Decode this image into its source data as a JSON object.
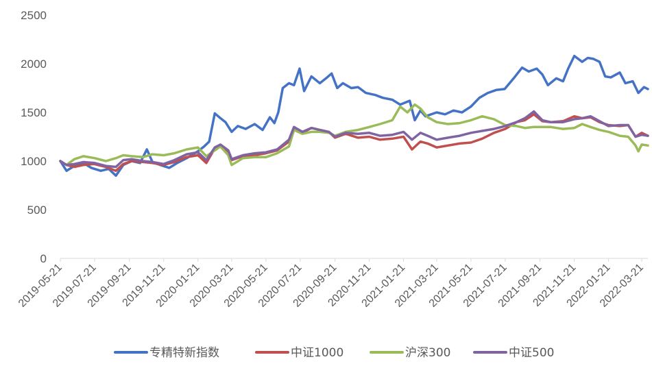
{
  "chart_data": {
    "type": "line",
    "title": "",
    "xlabel": "",
    "ylabel": "",
    "ylim": [
      0,
      2500
    ],
    "yticks": [
      0,
      500,
      1000,
      1500,
      2000,
      2500
    ],
    "x_tick_labels": [
      "2019-05-21",
      "2019-07-21",
      "2019-09-21",
      "2019-11-21",
      "2020-01-21",
      "2020-03-21",
      "2020-05-21",
      "2020-07-21",
      "2020-09-21",
      "2020-11-21",
      "2021-01-21",
      "2021-03-21",
      "2021-05-21",
      "2021-07-21",
      "2021-09-21",
      "2021-11-21",
      "2022-01-21",
      "2022-03-21"
    ],
    "x_start": "2019-05-21",
    "x_end": "2022-04-01",
    "grid": false,
    "legend_position": "bottom",
    "series": [
      {
        "name": "专精特新指数",
        "color": "#4472C4",
        "points": [
          [
            "2019-05-21",
            1000
          ],
          [
            "2019-06-01",
            900
          ],
          [
            "2019-06-15",
            950
          ],
          [
            "2019-07-01",
            980
          ],
          [
            "2019-07-15",
            930
          ],
          [
            "2019-08-01",
            900
          ],
          [
            "2019-08-15",
            920
          ],
          [
            "2019-08-28",
            850
          ],
          [
            "2019-09-10",
            960
          ],
          [
            "2019-09-25",
            1000
          ],
          [
            "2019-10-10",
            980
          ],
          [
            "2019-10-22",
            1120
          ],
          [
            "2019-11-01",
            990
          ],
          [
            "2019-11-15",
            960
          ],
          [
            "2019-12-01",
            930
          ],
          [
            "2019-12-15",
            980
          ],
          [
            "2020-01-01",
            1030
          ],
          [
            "2020-01-21",
            1100
          ],
          [
            "2020-02-01",
            1150
          ],
          [
            "2020-02-10",
            1200
          ],
          [
            "2020-02-20",
            1490
          ],
          [
            "2020-02-28",
            1450
          ],
          [
            "2020-03-10",
            1400
          ],
          [
            "2020-03-21",
            1300
          ],
          [
            "2020-04-01",
            1360
          ],
          [
            "2020-04-15",
            1330
          ],
          [
            "2020-05-01",
            1380
          ],
          [
            "2020-05-15",
            1320
          ],
          [
            "2020-05-28",
            1450
          ],
          [
            "2020-06-05",
            1390
          ],
          [
            "2020-06-12",
            1500
          ],
          [
            "2020-06-20",
            1750
          ],
          [
            "2020-07-01",
            1800
          ],
          [
            "2020-07-10",
            1780
          ],
          [
            "2020-07-20",
            1950
          ],
          [
            "2020-07-28",
            1720
          ],
          [
            "2020-08-10",
            1870
          ],
          [
            "2020-08-25",
            1800
          ],
          [
            "2020-09-05",
            1850
          ],
          [
            "2020-09-15",
            1900
          ],
          [
            "2020-09-25",
            1750
          ],
          [
            "2020-10-05",
            1800
          ],
          [
            "2020-10-20",
            1750
          ],
          [
            "2020-11-01",
            1760
          ],
          [
            "2020-11-15",
            1700
          ],
          [
            "2020-12-01",
            1680
          ],
          [
            "2020-12-15",
            1650
          ],
          [
            "2021-01-01",
            1630
          ],
          [
            "2021-01-15",
            1580
          ],
          [
            "2021-02-01",
            1620
          ],
          [
            "2021-02-10",
            1420
          ],
          [
            "2021-02-20",
            1520
          ],
          [
            "2021-03-01",
            1460
          ],
          [
            "2021-03-21",
            1500
          ],
          [
            "2021-04-05",
            1480
          ],
          [
            "2021-04-20",
            1520
          ],
          [
            "2021-05-05",
            1500
          ],
          [
            "2021-05-21",
            1560
          ],
          [
            "2021-06-05",
            1650
          ],
          [
            "2021-06-20",
            1700
          ],
          [
            "2021-07-05",
            1730
          ],
          [
            "2021-07-20",
            1740
          ],
          [
            "2021-08-05",
            1850
          ],
          [
            "2021-08-20",
            1960
          ],
          [
            "2021-09-01",
            1920
          ],
          [
            "2021-09-15",
            1950
          ],
          [
            "2021-09-25",
            1890
          ],
          [
            "2021-10-05",
            1780
          ],
          [
            "2021-10-20",
            1850
          ],
          [
            "2021-11-01",
            1820
          ],
          [
            "2021-11-10",
            1950
          ],
          [
            "2021-11-21",
            2080
          ],
          [
            "2021-12-05",
            2020
          ],
          [
            "2021-12-15",
            2060
          ],
          [
            "2021-12-25",
            2050
          ],
          [
            "2022-01-05",
            2020
          ],
          [
            "2022-01-15",
            1870
          ],
          [
            "2022-01-25",
            1860
          ],
          [
            "2022-02-10",
            1910
          ],
          [
            "2022-02-20",
            1800
          ],
          [
            "2022-03-05",
            1820
          ],
          [
            "2022-03-15",
            1700
          ],
          [
            "2022-03-25",
            1760
          ],
          [
            "2022-04-01",
            1740
          ]
        ]
      },
      {
        "name": "中证1000",
        "color": "#C0504D",
        "points": [
          [
            "2019-05-21",
            1000
          ],
          [
            "2019-06-01",
            960
          ],
          [
            "2019-06-15",
            940
          ],
          [
            "2019-07-01",
            960
          ],
          [
            "2019-07-20",
            970
          ],
          [
            "2019-08-10",
            940
          ],
          [
            "2019-08-28",
            900
          ],
          [
            "2019-09-10",
            970
          ],
          [
            "2019-09-25",
            1000
          ],
          [
            "2019-10-15",
            990
          ],
          [
            "2019-11-01",
            980
          ],
          [
            "2019-11-20",
            960
          ],
          [
            "2019-12-10",
            990
          ],
          [
            "2020-01-01",
            1040
          ],
          [
            "2020-01-21",
            1060
          ],
          [
            "2020-02-05",
            980
          ],
          [
            "2020-02-20",
            1130
          ],
          [
            "2020-03-01",
            1160
          ],
          [
            "2020-03-15",
            1100
          ],
          [
            "2020-03-21",
            1010
          ],
          [
            "2020-04-10",
            1050
          ],
          [
            "2020-05-01",
            1060
          ],
          [
            "2020-05-21",
            1080
          ],
          [
            "2020-06-10",
            1110
          ],
          [
            "2020-07-01",
            1200
          ],
          [
            "2020-07-10",
            1330
          ],
          [
            "2020-07-25",
            1290
          ],
          [
            "2020-08-10",
            1340
          ],
          [
            "2020-08-25",
            1320
          ],
          [
            "2020-09-10",
            1300
          ],
          [
            "2020-09-21",
            1240
          ],
          [
            "2020-10-10",
            1280
          ],
          [
            "2020-11-01",
            1240
          ],
          [
            "2020-11-21",
            1250
          ],
          [
            "2020-12-10",
            1220
          ],
          [
            "2021-01-01",
            1230
          ],
          [
            "2021-01-21",
            1250
          ],
          [
            "2021-02-05",
            1120
          ],
          [
            "2021-02-20",
            1200
          ],
          [
            "2021-03-05",
            1180
          ],
          [
            "2021-03-21",
            1140
          ],
          [
            "2021-04-10",
            1160
          ],
          [
            "2021-05-01",
            1180
          ],
          [
            "2021-05-21",
            1190
          ],
          [
            "2021-06-10",
            1230
          ],
          [
            "2021-07-01",
            1290
          ],
          [
            "2021-07-21",
            1330
          ],
          [
            "2021-08-10",
            1400
          ],
          [
            "2021-08-25",
            1420
          ],
          [
            "2021-09-10",
            1480
          ],
          [
            "2021-09-25",
            1410
          ],
          [
            "2021-10-10",
            1400
          ],
          [
            "2021-11-01",
            1410
          ],
          [
            "2021-11-21",
            1460
          ],
          [
            "2021-12-05",
            1440
          ],
          [
            "2021-12-20",
            1450
          ],
          [
            "2022-01-05",
            1400
          ],
          [
            "2022-01-21",
            1370
          ],
          [
            "2022-02-10",
            1360
          ],
          [
            "2022-02-25",
            1370
          ],
          [
            "2022-03-10",
            1250
          ],
          [
            "2022-03-21",
            1290
          ],
          [
            "2022-04-01",
            1260
          ]
        ]
      },
      {
        "name": "沪深300",
        "color": "#9BBB59",
        "points": [
          [
            "2019-05-21",
            1000
          ],
          [
            "2019-06-01",
            960
          ],
          [
            "2019-06-15",
            1020
          ],
          [
            "2019-07-01",
            1050
          ],
          [
            "2019-07-21",
            1030
          ],
          [
            "2019-08-10",
            1000
          ],
          [
            "2019-08-28",
            1030
          ],
          [
            "2019-09-10",
            1060
          ],
          [
            "2019-09-25",
            1050
          ],
          [
            "2019-10-15",
            1040
          ],
          [
            "2019-11-01",
            1070
          ],
          [
            "2019-11-21",
            1060
          ],
          [
            "2019-12-10",
            1080
          ],
          [
            "2020-01-01",
            1120
          ],
          [
            "2020-01-21",
            1140
          ],
          [
            "2020-02-05",
            1050
          ],
          [
            "2020-02-20",
            1110
          ],
          [
            "2020-03-01",
            1150
          ],
          [
            "2020-03-15",
            1060
          ],
          [
            "2020-03-21",
            960
          ],
          [
            "2020-04-10",
            1030
          ],
          [
            "2020-05-01",
            1040
          ],
          [
            "2020-05-21",
            1040
          ],
          [
            "2020-06-10",
            1080
          ],
          [
            "2020-07-01",
            1150
          ],
          [
            "2020-07-10",
            1320
          ],
          [
            "2020-07-25",
            1280
          ],
          [
            "2020-08-10",
            1300
          ],
          [
            "2020-08-25",
            1300
          ],
          [
            "2020-09-10",
            1290
          ],
          [
            "2020-09-21",
            1260
          ],
          [
            "2020-10-10",
            1300
          ],
          [
            "2020-11-01",
            1320
          ],
          [
            "2020-11-21",
            1350
          ],
          [
            "2020-12-10",
            1380
          ],
          [
            "2021-01-01",
            1420
          ],
          [
            "2021-01-15",
            1560
          ],
          [
            "2021-01-28",
            1500
          ],
          [
            "2021-02-10",
            1580
          ],
          [
            "2021-02-20",
            1540
          ],
          [
            "2021-03-05",
            1450
          ],
          [
            "2021-03-21",
            1400
          ],
          [
            "2021-04-10",
            1380
          ],
          [
            "2021-05-01",
            1390
          ],
          [
            "2021-05-21",
            1420
          ],
          [
            "2021-06-10",
            1460
          ],
          [
            "2021-07-01",
            1430
          ],
          [
            "2021-07-21",
            1370
          ],
          [
            "2021-08-10",
            1360
          ],
          [
            "2021-08-25",
            1340
          ],
          [
            "2021-09-10",
            1350
          ],
          [
            "2021-09-25",
            1350
          ],
          [
            "2021-10-10",
            1350
          ],
          [
            "2021-11-01",
            1330
          ],
          [
            "2021-11-21",
            1340
          ],
          [
            "2021-12-05",
            1380
          ],
          [
            "2021-12-20",
            1350
          ],
          [
            "2022-01-05",
            1320
          ],
          [
            "2022-01-21",
            1300
          ],
          [
            "2022-02-10",
            1260
          ],
          [
            "2022-02-25",
            1250
          ],
          [
            "2022-03-10",
            1160
          ],
          [
            "2022-03-15",
            1100
          ],
          [
            "2022-03-21",
            1170
          ],
          [
            "2022-04-01",
            1160
          ]
        ]
      },
      {
        "name": "中证500",
        "color": "#8064A2",
        "points": [
          [
            "2019-05-21",
            1000
          ],
          [
            "2019-06-01",
            960
          ],
          [
            "2019-06-15",
            970
          ],
          [
            "2019-07-01",
            990
          ],
          [
            "2019-07-21",
            980
          ],
          [
            "2019-08-10",
            950
          ],
          [
            "2019-08-28",
            940
          ],
          [
            "2019-09-10",
            1010
          ],
          [
            "2019-09-25",
            1020
          ],
          [
            "2019-10-15",
            1000
          ],
          [
            "2019-11-01",
            990
          ],
          [
            "2019-11-21",
            970
          ],
          [
            "2019-12-10",
            1010
          ],
          [
            "2020-01-01",
            1070
          ],
          [
            "2020-01-21",
            1090
          ],
          [
            "2020-02-05",
            1010
          ],
          [
            "2020-02-20",
            1140
          ],
          [
            "2020-03-01",
            1170
          ],
          [
            "2020-03-15",
            1110
          ],
          [
            "2020-03-21",
            1020
          ],
          [
            "2020-04-10",
            1060
          ],
          [
            "2020-05-01",
            1080
          ],
          [
            "2020-05-21",
            1090
          ],
          [
            "2020-06-10",
            1120
          ],
          [
            "2020-07-01",
            1220
          ],
          [
            "2020-07-10",
            1350
          ],
          [
            "2020-07-25",
            1300
          ],
          [
            "2020-08-10",
            1340
          ],
          [
            "2020-08-25",
            1320
          ],
          [
            "2020-09-10",
            1300
          ],
          [
            "2020-09-21",
            1250
          ],
          [
            "2020-10-10",
            1290
          ],
          [
            "2020-11-01",
            1280
          ],
          [
            "2020-11-21",
            1290
          ],
          [
            "2020-12-10",
            1260
          ],
          [
            "2021-01-01",
            1270
          ],
          [
            "2021-01-21",
            1300
          ],
          [
            "2021-02-05",
            1220
          ],
          [
            "2021-02-20",
            1290
          ],
          [
            "2021-03-05",
            1260
          ],
          [
            "2021-03-21",
            1220
          ],
          [
            "2021-04-10",
            1240
          ],
          [
            "2021-05-01",
            1260
          ],
          [
            "2021-05-21",
            1290
          ],
          [
            "2021-06-10",
            1310
          ],
          [
            "2021-07-01",
            1330
          ],
          [
            "2021-07-21",
            1360
          ],
          [
            "2021-08-10",
            1400
          ],
          [
            "2021-08-25",
            1440
          ],
          [
            "2021-09-10",
            1510
          ],
          [
            "2021-09-25",
            1420
          ],
          [
            "2021-10-10",
            1400
          ],
          [
            "2021-11-01",
            1400
          ],
          [
            "2021-11-21",
            1430
          ],
          [
            "2021-12-05",
            1440
          ],
          [
            "2021-12-20",
            1460
          ],
          [
            "2022-01-05",
            1410
          ],
          [
            "2022-01-21",
            1360
          ],
          [
            "2022-02-10",
            1370
          ],
          [
            "2022-02-25",
            1370
          ],
          [
            "2022-03-10",
            1250
          ],
          [
            "2022-03-21",
            1270
          ],
          [
            "2022-04-01",
            1260
          ]
        ]
      }
    ]
  }
}
